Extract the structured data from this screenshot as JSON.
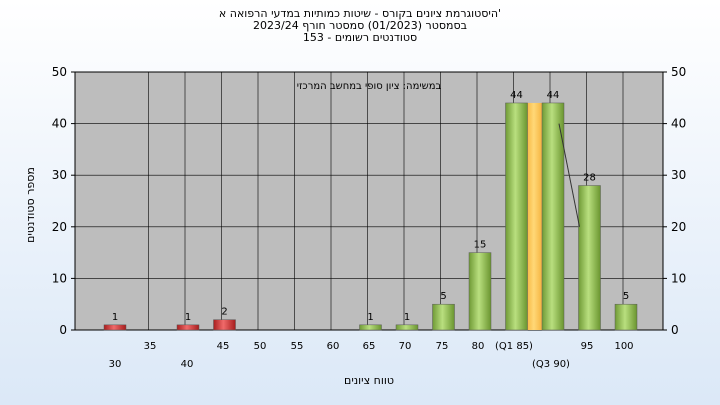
{
  "chart_data": {
    "type": "bar",
    "title_lines": [
      "היסטוגרמת ציונים בקורס - שיטות כמותיות במדעי הרפואה א'",
      "בסמסטר  (01/2023)  סמסטר חורף 2023/24",
      "סטודנטים רשומים - 153"
    ],
    "subtitle": "במשימה: ציון סופי במחשב המרכזי",
    "xlabel": "טווח ציונים",
    "ylabel": "מספר סטודנטים",
    "ylim": [
      0,
      50
    ],
    "yticks": [
      0,
      10,
      20,
      30,
      40,
      50
    ],
    "grid": true,
    "x_tick_labels_upper": [
      "35",
      "45",
      "50",
      "55",
      "60",
      "65",
      "70",
      "75",
      "80",
      "(Q1 85)",
      "95",
      "100"
    ],
    "x_tick_labels_lower": [
      "30",
      "40",
      "(Q3 90)"
    ],
    "bars": [
      {
        "x": 30,
        "value": 1,
        "color": "#dd3333"
      },
      {
        "x": 40,
        "value": 1,
        "color": "#dd3333"
      },
      {
        "x": 45,
        "value": 2,
        "color": "#dd3333"
      },
      {
        "x": 65,
        "value": 1,
        "color": "#8dbb4e"
      },
      {
        "x": 70,
        "value": 1,
        "color": "#8dbb4e"
      },
      {
        "x": 75,
        "value": 5,
        "color": "#8dbb4e"
      },
      {
        "x": 80,
        "value": 15,
        "color": "#8dbb4e"
      },
      {
        "x": 85,
        "value": 44,
        "color": "#8dbb4e"
      },
      {
        "x": 90,
        "value": 44,
        "color": "#8dbb4e"
      },
      {
        "x": 95,
        "value": 28,
        "color": "#8dbb4e"
      },
      {
        "x": 100,
        "value": 5,
        "color": "#8dbb4e"
      }
    ],
    "highlight_range": {
      "from": 85,
      "to": 90,
      "color": "#ffc84a"
    },
    "colors": {
      "plot_bg": "#bdbdbd",
      "grid": "#000000"
    }
  }
}
